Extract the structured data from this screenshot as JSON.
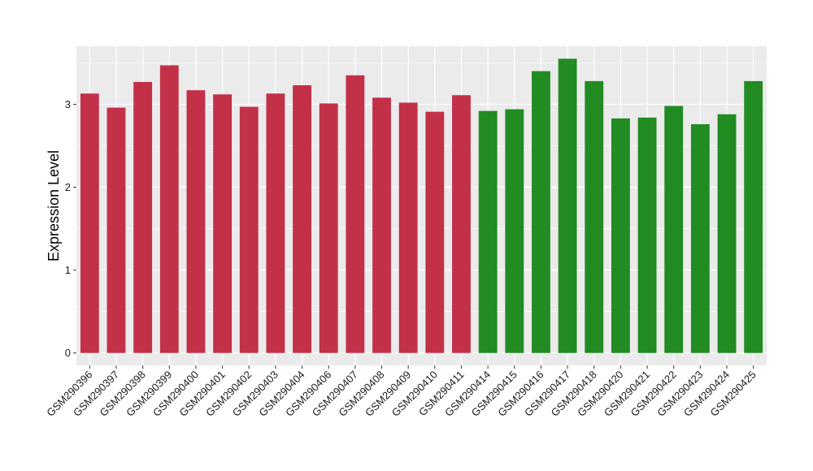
{
  "chart_data": {
    "type": "bar",
    "title": "",
    "xlabel": "",
    "ylabel": "Expression Level",
    "ylim": [
      -0.15,
      3.7
    ],
    "yticks": [
      0,
      1,
      2,
      3
    ],
    "grid": true,
    "legend": "none",
    "panel_background": "#ebebeb",
    "grid_color": "#ffffff",
    "categories": [
      "GSM290396",
      "GSM290397",
      "GSM290398",
      "GSM290399",
      "GSM290400",
      "GSM290401",
      "GSM290402",
      "GSM290403",
      "GSM290404",
      "GSM290406",
      "GSM290407",
      "GSM290408",
      "GSM290409",
      "GSM290410",
      "GSM290411",
      "GSM290414",
      "GSM290415",
      "GSM290416",
      "GSM290417",
      "GSM290418",
      "GSM290420",
      "GSM290421",
      "GSM290422",
      "GSM290423",
      "GSM290424",
      "GSM290425"
    ],
    "values": [
      3.13,
      2.96,
      3.27,
      3.47,
      3.17,
      3.12,
      2.97,
      3.13,
      3.23,
      3.01,
      3.35,
      3.08,
      3.02,
      2.91,
      3.11,
      2.92,
      2.94,
      3.4,
      3.55,
      3.28,
      2.83,
      2.84,
      2.98,
      2.76,
      2.88,
      3.28
    ],
    "colors": [
      "#c33149",
      "#c33149",
      "#c33149",
      "#c33149",
      "#c33149",
      "#c33149",
      "#c33149",
      "#c33149",
      "#c33149",
      "#c33149",
      "#c33149",
      "#c33149",
      "#c33149",
      "#c33149",
      "#c33149",
      "#228b22",
      "#228b22",
      "#228b22",
      "#228b22",
      "#228b22",
      "#228b22",
      "#228b22",
      "#228b22",
      "#228b22",
      "#228b22",
      "#228b22"
    ]
  }
}
